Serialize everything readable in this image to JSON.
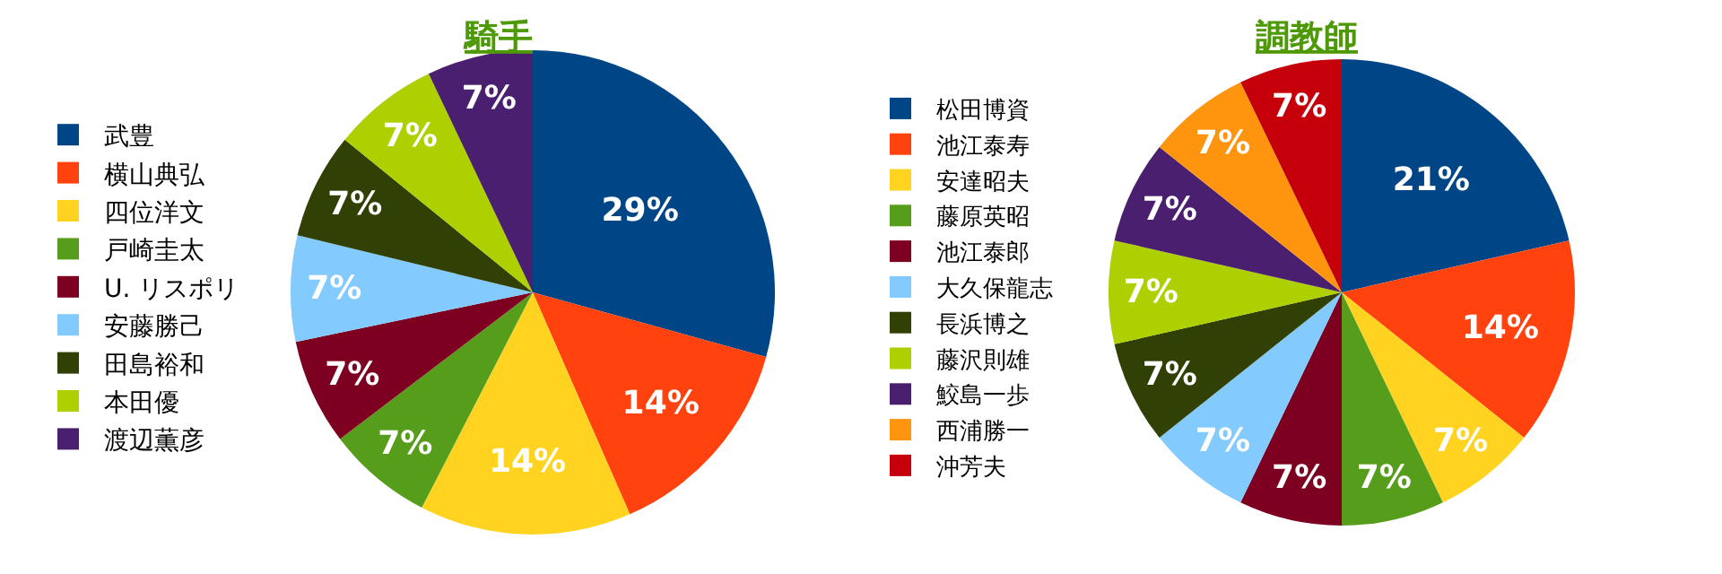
{
  "chart_data": [
    {
      "type": "pie",
      "title": "騎手",
      "legend": "left",
      "categories": [
        "武豊",
        "横山典弘",
        "四位洋文",
        "戸崎圭太",
        "U. リスポリ",
        "安藤勝己",
        "田島裕和",
        "本田優",
        "渡辺薫彦"
      ],
      "values": [
        29,
        14,
        14,
        7,
        7,
        7,
        7,
        7,
        7
      ],
      "value_labels": [
        "29%",
        "14%",
        "14%",
        "7%",
        "7%",
        "7%",
        "7%",
        "7%",
        "7%"
      ],
      "colors": [
        "#004586",
        "#ff420e",
        "#ffd320",
        "#579d1c",
        "#7e0021",
        "#83caff",
        "#314004",
        "#aecf00",
        "#4b1f6f"
      ]
    },
    {
      "type": "pie",
      "title": "調教師",
      "legend": "left",
      "categories": [
        "松田博資",
        "池江泰寿",
        "安達昭夫",
        "藤原英昭",
        "池江泰郎",
        "大久保龍志",
        "長浜博之",
        "藤沢則雄",
        "鮫島一歩",
        "西浦勝一",
        "沖芳夫"
      ],
      "values": [
        21,
        14,
        7,
        7,
        7,
        7,
        7,
        7,
        7,
        7,
        7
      ],
      "value_labels": [
        "21%",
        "14%",
        "7%",
        "7%",
        "7%",
        "7%",
        "7%",
        "7%",
        "7%",
        "7%",
        "7%"
      ],
      "colors": [
        "#004586",
        "#ff420e",
        "#ffd320",
        "#579d1c",
        "#7e0021",
        "#83caff",
        "#314004",
        "#aecf00",
        "#4b1f6f",
        "#ff950e",
        "#c5000b"
      ]
    }
  ]
}
